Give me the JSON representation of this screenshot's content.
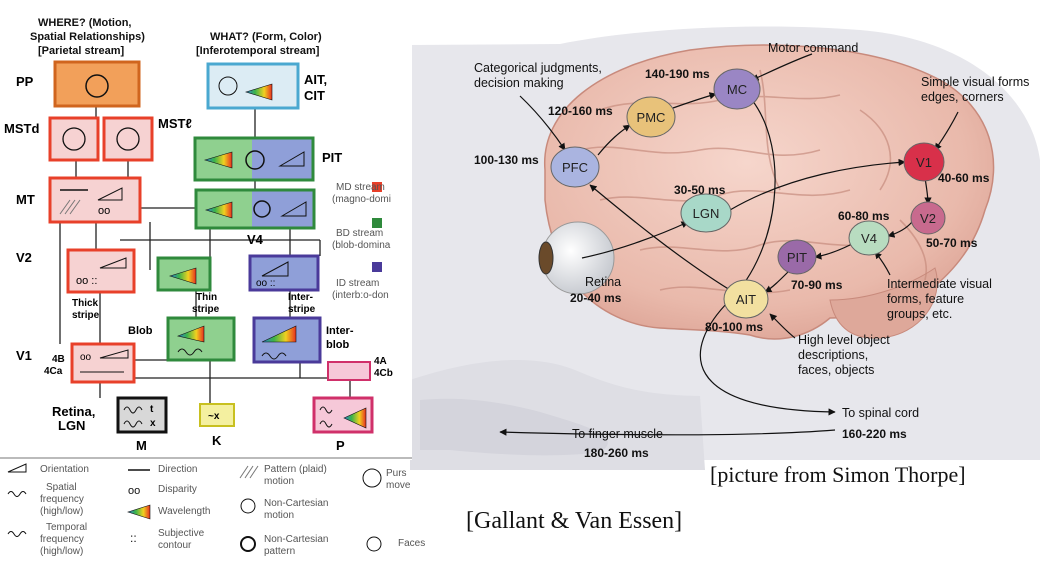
{
  "left_diagram": {
    "where_header": [
      "WHERE? (Motion,",
      "Spatial Relationships)",
      "[Parietal stream]"
    ],
    "what_header": [
      "WHAT? (Form, Color)",
      "[Inferotemporal stream]"
    ],
    "area_labels": {
      "pp": "PP",
      "mstd": "MSTd",
      "mstl": "MSTℓ",
      "mt": "MT",
      "ait": "AIT,",
      "cit": "CIT",
      "pit": "PIT",
      "v4": "V4",
      "v2": "V2",
      "thick": [
        "Thick",
        "stripe"
      ],
      "thin": [
        "Thin",
        "stripe"
      ],
      "inter": [
        "Inter-",
        "stripe"
      ],
      "blob": "Blob",
      "interblob": [
        "Inter-",
        "blob"
      ],
      "v1": "V1",
      "l4b": [
        "4B",
        "4Ca"
      ],
      "l4a": [
        "4A",
        "4Cb"
      ],
      "retina": [
        "Retina,",
        "LGN"
      ],
      "m": "M",
      "k": "K",
      "p": "P"
    },
    "stream_legend": [
      {
        "text": [
          "MD stream",
          "(magno-domi"
        ],
        "color": "#e8402a"
      },
      {
        "text": [
          "BD stream",
          "(blob-domina"
        ],
        "color": "#2f8a3c"
      },
      {
        "text": [
          "ID stream",
          "(interb:o-don"
        ],
        "color": "#4a3a9a"
      }
    ],
    "key_legend": [
      {
        "icon": "orientation-icon",
        "text": [
          "Orientation"
        ]
      },
      {
        "icon": "direction-icon",
        "text": [
          "Direction"
        ]
      },
      {
        "icon": "pattern-icon",
        "text": [
          "Pattern (plaid)",
          "motion"
        ]
      },
      {
        "icon": "pursuit-icon",
        "text": [
          "Purs",
          "move"
        ]
      },
      {
        "icon": "spatial-frequency-icon",
        "text": [
          "Spatial",
          "frequency",
          "(high/low)"
        ]
      },
      {
        "icon": "disparity-icon",
        "text": [
          "Disparity"
        ]
      },
      {
        "icon": "non-cartesian-motion-icon",
        "text": [
          "Non-Cartesian",
          "motion"
        ]
      },
      {
        "icon": "wavelength-icon",
        "text": [
          "Wavelength"
        ]
      },
      {
        "icon": "temporal-frequency-icon",
        "text": [
          "Temporal",
          "frequency",
          "(high/low)"
        ]
      },
      {
        "icon": "subjective-contour-icon",
        "text": [
          "Subjective",
          "contour"
        ]
      },
      {
        "icon": "non-cartesian-pattern-icon",
        "text": [
          "Non-Cartesian",
          "pattern"
        ]
      },
      {
        "icon": "faces-icon",
        "text": [
          "Faces"
        ]
      }
    ],
    "caption": "[Gallant & Van Essen]"
  },
  "brain_diagram": {
    "nodes": [
      {
        "id": "pfc",
        "label": "PFC",
        "color": "#aab4e0"
      },
      {
        "id": "pmc",
        "label": "PMC",
        "color": "#e8c27a"
      },
      {
        "id": "mc",
        "label": "MC",
        "color": "#9a86c4"
      },
      {
        "id": "lgn",
        "label": "LGN",
        "color": "#a8d8c8"
      },
      {
        "id": "v1",
        "label": "V1",
        "color": "#d8304a"
      },
      {
        "id": "v2",
        "label": "V2",
        "color": "#c86a8e"
      },
      {
        "id": "v4",
        "label": "V4",
        "color": "#b8dcc0"
      },
      {
        "id": "pit",
        "label": "PIT",
        "color": "#9a6aa8"
      },
      {
        "id": "ait",
        "label": "AIT",
        "color": "#f2e0a0"
      }
    ],
    "timings": {
      "pfc": "100-130 ms",
      "pmc": "120-160 ms",
      "mc": "140-190 ms",
      "lgn": "30-50 ms",
      "v1": "40-60 ms",
      "v2": "50-70 ms",
      "v4": "60-80 ms",
      "pit": "70-90 ms",
      "ait": "80-100 ms",
      "retina": "20-40 ms",
      "spinal": "160-220 ms",
      "finger": "180-260 ms"
    },
    "annotations": {
      "categorical": [
        "Categorical judgments,",
        "decision making"
      ],
      "motor": "Motor command",
      "simple": [
        "Simple visual forms",
        "edges, corners"
      ],
      "intermediate": [
        "Intermediate visual",
        "forms, feature",
        "groups, etc."
      ],
      "high": [
        "High level object",
        "descriptions,",
        "faces, objects"
      ],
      "retina": "Retina",
      "spinal": "To spinal cord",
      "finger": "To finger muscle"
    },
    "caption": "[picture from Simon Thorpe]"
  }
}
